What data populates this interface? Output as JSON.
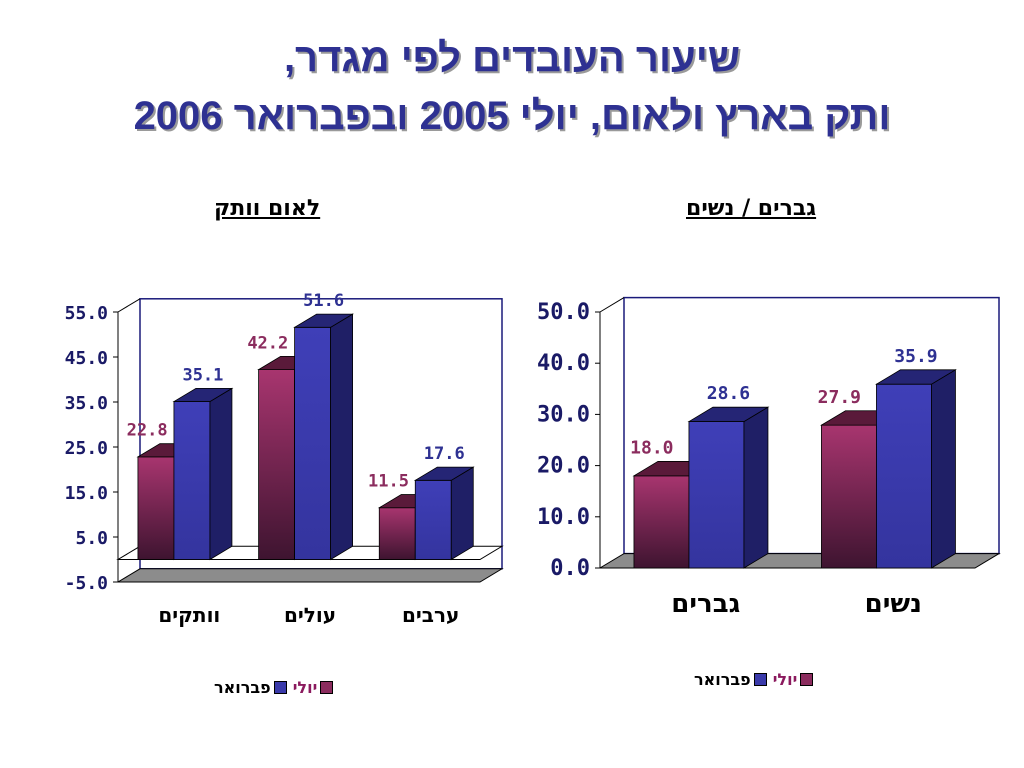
{
  "title": {
    "line1": "שיעור העובדים לפי מגדר,",
    "line2": "ותק בארץ ולאום, יולי 2005 ובפברואר 2006"
  },
  "legend": {
    "july": "יולי",
    "february": "פברואר"
  },
  "colors": {
    "july": "#8b2c5e",
    "february": "#3a3aaa",
    "july_label": "#8b2c5e",
    "february_label": "#2e3192"
  },
  "chart_data": [
    {
      "type": "bar",
      "subtitle": "לאום וותק",
      "categories": [
        "וותקים",
        "עולים",
        "ערבים"
      ],
      "series": [
        {
          "name": "יולי",
          "values": [
            22.8,
            42.2,
            11.5
          ]
        },
        {
          "name": "פברואר",
          "values": [
            35.1,
            51.6,
            17.6
          ]
        }
      ],
      "value_labels": {
        "july": [
          "22.8",
          "42.2",
          "11.5"
        ],
        "february": [
          "35.1",
          "51.6",
          "17.6"
        ]
      },
      "ylim": [
        -5.0,
        55.0
      ],
      "ticks": [
        "55.0",
        "45.0",
        "35.0",
        "25.0",
        "15.0",
        "5.0",
        "-5.0"
      ],
      "tick_values": [
        55,
        45,
        35,
        25,
        15,
        5,
        -5
      ],
      "base": 0,
      "legend_position": "bottom"
    },
    {
      "type": "bar",
      "subtitle": "גברים / נשים",
      "categories": [
        "גברים",
        "נשים"
      ],
      "series": [
        {
          "name": "יולי",
          "values": [
            18.0,
            27.9
          ]
        },
        {
          "name": "פברואר",
          "values": [
            28.6,
            35.9
          ]
        }
      ],
      "value_labels": {
        "july": [
          "18.0",
          "27.9"
        ],
        "february": [
          "28.6",
          "35.9"
        ]
      },
      "ylim": [
        0.0,
        50.0
      ],
      "ticks": [
        "50.0",
        "40.0",
        "30.0",
        "20.0",
        "10.0",
        "0.0"
      ],
      "tick_values": [
        50,
        40,
        30,
        20,
        10,
        0
      ],
      "base": 0,
      "legend_position": "bottom"
    }
  ]
}
